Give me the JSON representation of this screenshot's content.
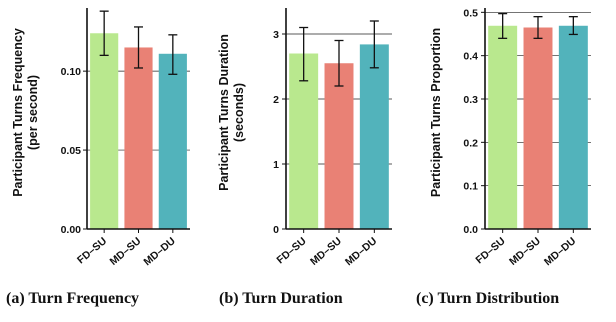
{
  "chart_data": [
    {
      "type": "bar",
      "caption": "(a) Turn Frequency",
      "ylabel_lines": [
        "Participant Turns Frequency",
        "(per second)"
      ],
      "categories": [
        "FD-SU",
        "MD-SU",
        "MD-DU"
      ],
      "values": [
        0.124,
        0.115,
        0.111
      ],
      "errors": [
        [
          0.11,
          0.138
        ],
        [
          0.102,
          0.128
        ],
        [
          0.098,
          0.123
        ]
      ],
      "ylim": [
        0,
        0.14
      ],
      "yticks": [
        0.0,
        0.05,
        0.1
      ],
      "ytick_labels": [
        "0.00",
        "0.05",
        "0.10"
      ],
      "grid": "horizontal"
    },
    {
      "type": "bar",
      "caption": "(b) Turn Duration",
      "ylabel_lines": [
        "Participant Turns Duration",
        "(seconds)"
      ],
      "categories": [
        "FD-SU",
        "MD-SU",
        "MD-DU"
      ],
      "values": [
        2.7,
        2.55,
        2.84
      ],
      "errors": [
        [
          2.28,
          3.1
        ],
        [
          2.2,
          2.9
        ],
        [
          2.48,
          3.2
        ]
      ],
      "ylim": [
        0,
        3.4
      ],
      "yticks": [
        0,
        1,
        2,
        3
      ],
      "ytick_labels": [
        "0",
        "1",
        "2",
        "3"
      ],
      "grid": "horizontal"
    },
    {
      "type": "bar",
      "caption": "(c) Turn Distribution",
      "ylabel_lines": [
        "Participant Turns Proportion"
      ],
      "categories": [
        "FD-SU",
        "MD-SU",
        "MD-DU"
      ],
      "values": [
        0.469,
        0.465,
        0.469
      ],
      "errors": [
        [
          0.44,
          0.497
        ],
        [
          0.44,
          0.49
        ],
        [
          0.449,
          0.49
        ]
      ],
      "ylim": [
        0,
        0.51
      ],
      "yticks": [
        0.0,
        0.1,
        0.2,
        0.3,
        0.4,
        0.5
      ],
      "ytick_labels": [
        "0.0",
        "0.1",
        "0.2",
        "0.3",
        "0.4",
        "0.5"
      ],
      "grid": "horizontal"
    }
  ],
  "colors": {
    "FD-SU": "#b9e88e",
    "MD-SU": "#e98175",
    "MD-DU": "#52b3bb"
  }
}
